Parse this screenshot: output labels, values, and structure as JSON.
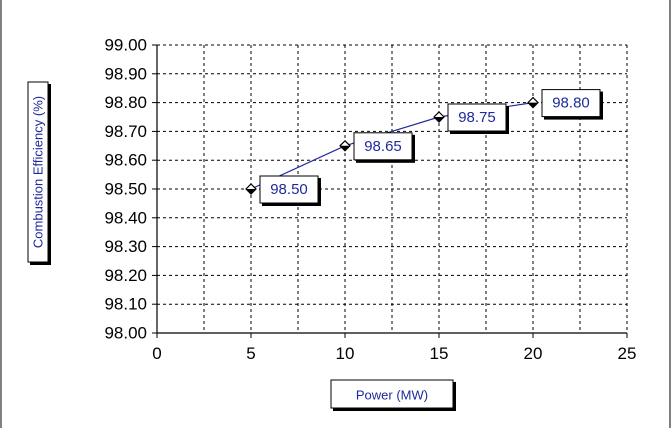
{
  "chart_data": {
    "type": "line",
    "title": "",
    "xlabel": "Power (MW)",
    "ylabel": "Combustion Efficiency (%)",
    "xlim": [
      0,
      25
    ],
    "ylim": [
      98.0,
      99.0
    ],
    "x_ticks": [
      "0",
      "5",
      "10",
      "15",
      "20",
      "25"
    ],
    "y_ticks": [
      "98.00",
      "98.10",
      "98.20",
      "98.30",
      "98.40",
      "98.50",
      "98.60",
      "98.70",
      "98.80",
      "98.90",
      "99.00"
    ],
    "grid": true,
    "grid_style": "dashed",
    "legend": "none",
    "series": [
      {
        "color": "#1f2a9c",
        "marker": "diamond",
        "x": [
          5,
          10,
          15,
          20
        ],
        "y": [
          98.5,
          98.65,
          98.75,
          98.8
        ],
        "data_labels": [
          "98.50",
          "98.65",
          "98.75",
          "98.80"
        ]
      }
    ]
  }
}
